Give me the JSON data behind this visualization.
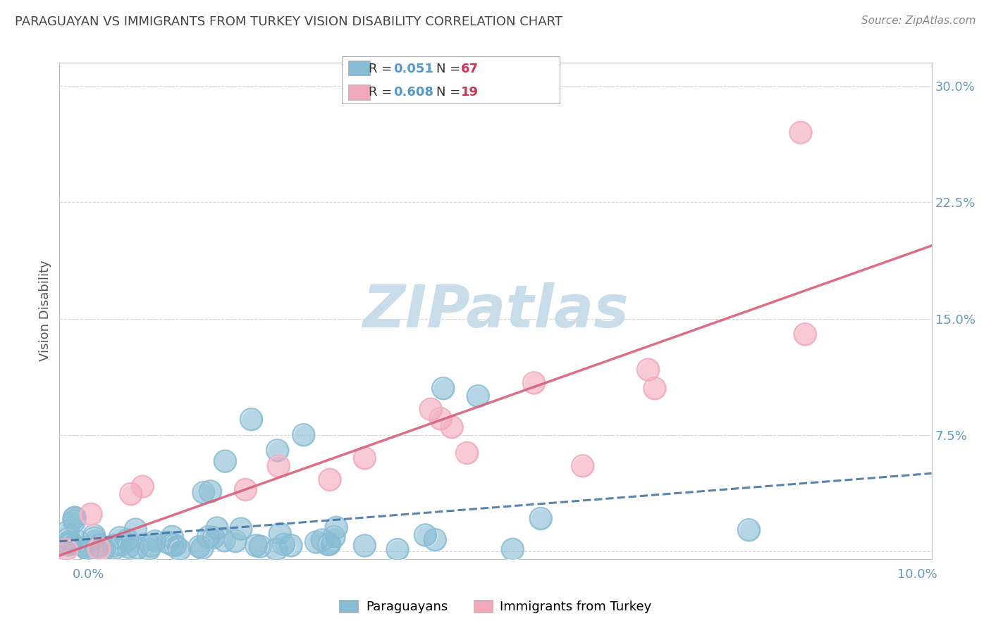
{
  "title": "PARAGUAYAN VS IMMIGRANTS FROM TURKEY VISION DISABILITY CORRELATION CHART",
  "source": "Source: ZipAtlas.com",
  "ylabel": "Vision Disability",
  "xlim": [
    0.0,
    0.1
  ],
  "ylim": [
    -0.005,
    0.315
  ],
  "yticks": [
    0.0,
    0.075,
    0.15,
    0.225,
    0.3
  ],
  "ytick_labels": [
    "",
    "7.5%",
    "15.0%",
    "22.5%",
    "30.0%"
  ],
  "blue_color": "#87bcd4",
  "pink_color": "#f2a8bb",
  "blue_line_color": "#3a6fa0",
  "pink_line_color": "#d95f7a",
  "background_color": "#ffffff",
  "grid_color": "#cccccc",
  "title_color": "#444444",
  "axis_label_color": "#6699bb",
  "r1": 0.051,
  "n1": 67,
  "r2": 0.608,
  "n2": 19,
  "watermark": "ZIPatlas",
  "watermark_color": "#c8dcea"
}
